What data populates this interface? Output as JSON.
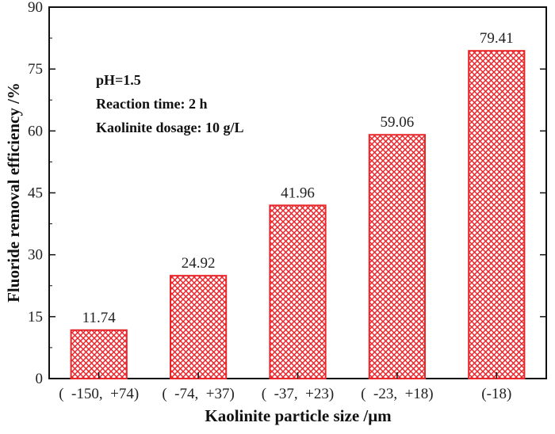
{
  "chart_data": {
    "type": "bar",
    "categories": [
      "(  -150,  +74)",
      "(  -74,  +37)",
      "(  -37,  +23)",
      "(  -23,  +18)",
      "(-18)"
    ],
    "values": [
      11.74,
      24.92,
      41.96,
      59.06,
      79.41
    ],
    "data_labels": [
      "11.74",
      "24.92",
      "41.96",
      "59.06",
      "79.41"
    ],
    "xlabel": "Kaolinite particle size /μm",
    "ylabel": "Fluoride removal efficiency /%",
    "ylim": [
      0,
      90
    ],
    "yticks": [
      0,
      15,
      30,
      45,
      60,
      75,
      90
    ],
    "annotations": [
      "pH=1.5",
      "Reaction time: 2 h",
      "Kaolinite dosage: 10 g/L"
    ],
    "bar_fill_pattern": "crosshatch",
    "bar_color": "#e8262b",
    "grid": false,
    "legend": "none"
  }
}
